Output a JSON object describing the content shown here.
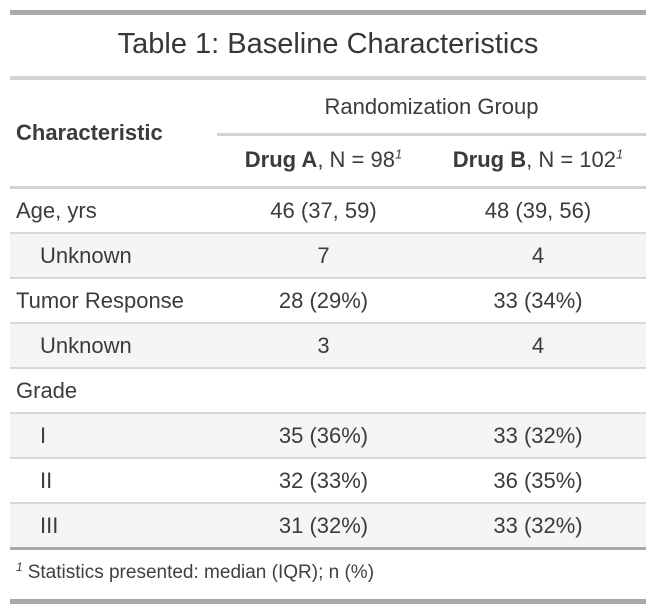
{
  "chart_data": {
    "type": "table",
    "title": "Table 1: Baseline Characteristics",
    "spanner": "Randomization Group",
    "stub_header": "Characteristic",
    "col_headers": [
      {
        "name": "Drug A",
        "suffix": ", N = 98",
        "footnote_mark": "1"
      },
      {
        "name": "Drug B",
        "suffix": ", N = 102",
        "footnote_mark": "1"
      }
    ],
    "rows": [
      {
        "label": "Age, yrs",
        "drug_a": "46 (37, 59)",
        "drug_b": "48 (39, 56)"
      },
      {
        "label": "Unknown",
        "drug_a": "7",
        "drug_b": "4"
      },
      {
        "label": "Tumor Response",
        "drug_a": "28 (29%)",
        "drug_b": "33 (34%)"
      },
      {
        "label": "Unknown",
        "drug_a": "3",
        "drug_b": "4"
      },
      {
        "label": "Grade",
        "drug_a": "",
        "drug_b": ""
      },
      {
        "label": "I",
        "drug_a": "35 (36%)",
        "drug_b": "33 (32%)"
      },
      {
        "label": "II",
        "drug_a": "32 (33%)",
        "drug_b": "36 (35%)"
      },
      {
        "label": "III",
        "drug_a": "31 (32%)",
        "drug_b": "33 (32%)"
      }
    ],
    "footnote_mark": "1",
    "footnote_text": "Statistics presented: median (IQR); n (%)"
  },
  "colors": {
    "text": "#3b3b3b",
    "rule_heavy": "#a9a9a9",
    "rule_light": "#d3d3d3",
    "row_separator": "#d7d7d7",
    "stripe_background": "#f5f5f5",
    "page_background": "#ffffff"
  }
}
